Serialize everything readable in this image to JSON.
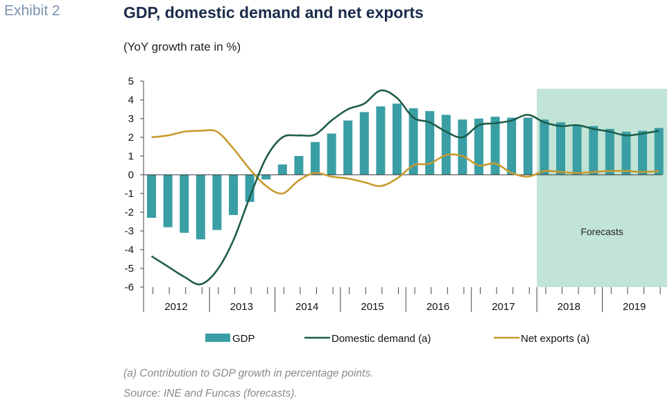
{
  "header": {
    "exhibit": "Exhibit 2",
    "title": "GDP, domestic demand and net exports",
    "subtitle": "(YoY growth rate in %)"
  },
  "footnotes": {
    "note": "(a) Contribution to GDP growth in percentage points.",
    "source": "Source: INE and Funcas (forecasts)."
  },
  "colors": {
    "gdp": "#3a9ea5",
    "domestic_demand": "#1d5c48",
    "net_exports": "#c79a2e",
    "forecast_shade": "#c2e4d6"
  },
  "chart_data": {
    "type": "bar",
    "title": "GDP, domestic demand and net exports",
    "subtitle": "(YoY growth rate in %)",
    "ylim": [
      -6,
      5
    ],
    "yticks": [
      5,
      4,
      3,
      2,
      1,
      0,
      -1,
      -2,
      -3,
      -4,
      -5,
      -6
    ],
    "years": [
      "2012",
      "2013",
      "2014",
      "2015",
      "2016",
      "2017",
      "2018",
      "2019"
    ],
    "quarters_per_year": 4,
    "forecast_start_index": 24,
    "forecast_label": "Forecasts",
    "grid": false,
    "legend_position": "bottom",
    "series": [
      {
        "name": "GDP",
        "kind": "bar",
        "values": [
          -2.3,
          -2.8,
          -3.1,
          -3.45,
          -2.95,
          -2.15,
          -1.45,
          -0.25,
          0.55,
          1.0,
          1.75,
          2.2,
          2.9,
          3.35,
          3.65,
          3.8,
          3.55,
          3.4,
          3.2,
          2.95,
          3.0,
          3.1,
          3.05,
          3.05,
          2.95,
          2.8,
          2.65,
          2.6,
          2.45,
          2.3,
          2.35,
          2.5
        ]
      },
      {
        "name": "Domestic demand (a)",
        "kind": "line",
        "values": [
          -4.35,
          -4.9,
          -5.45,
          -5.85,
          -5.1,
          -3.5,
          -1.2,
          0.9,
          2.0,
          2.1,
          2.15,
          2.9,
          3.5,
          3.8,
          4.5,
          4.1,
          3.05,
          2.8,
          2.3,
          2.0,
          2.65,
          2.75,
          2.9,
          3.2,
          2.8,
          2.6,
          2.65,
          2.45,
          2.3,
          2.1,
          2.2,
          2.35
        ]
      },
      {
        "name": "Net exports (a)",
        "kind": "line",
        "values": [
          2.0,
          2.1,
          2.3,
          2.35,
          2.3,
          1.4,
          0.3,
          -0.6,
          -1.0,
          -0.3,
          0.1,
          -0.1,
          -0.2,
          -0.4,
          -0.6,
          -0.2,
          0.5,
          0.6,
          1.05,
          1.0,
          0.5,
          0.6,
          0.1,
          -0.1,
          0.2,
          0.15,
          0.1,
          0.15,
          0.2,
          0.2,
          0.15,
          0.2
        ]
      }
    ]
  }
}
